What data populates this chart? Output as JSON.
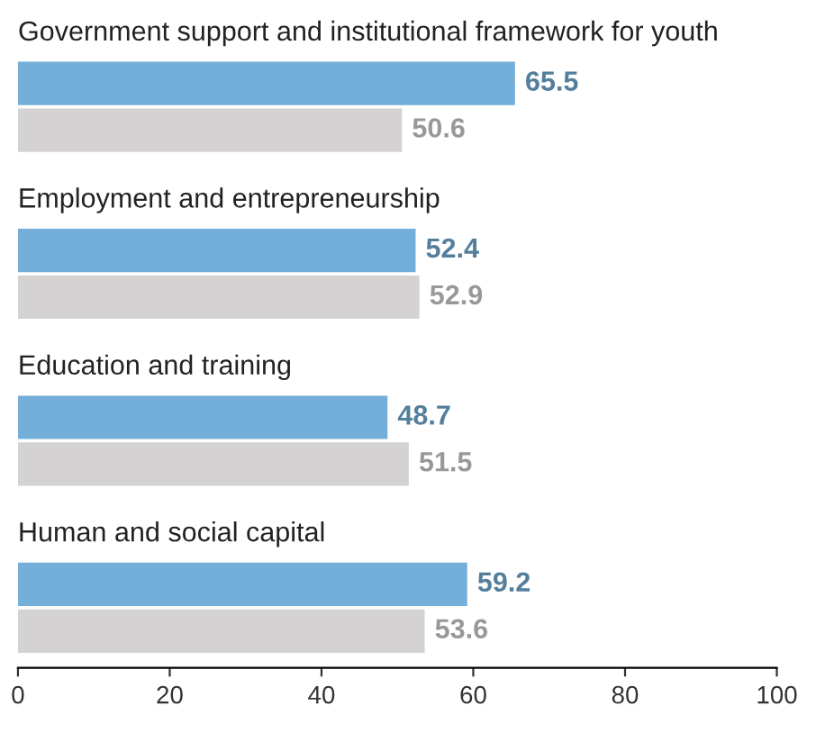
{
  "chart_data": {
    "type": "bar",
    "orientation": "horizontal",
    "categories": [
      "Government support and institutional framework for youth",
      "Employment and entrepreneurship",
      "Education and training",
      "Human and social capital"
    ],
    "series": [
      {
        "color": "#73afd8",
        "values": [
          65.5,
          52.4,
          48.7,
          59.2
        ]
      },
      {
        "color": "#d4d2d2",
        "values": [
          50.6,
          52.9,
          51.5,
          53.6
        ]
      }
    ],
    "xlim": [
      0,
      100
    ],
    "xticks": [
      0,
      20,
      40,
      60,
      80,
      100
    ],
    "data_labels": true,
    "grid": false,
    "legend": false
  }
}
